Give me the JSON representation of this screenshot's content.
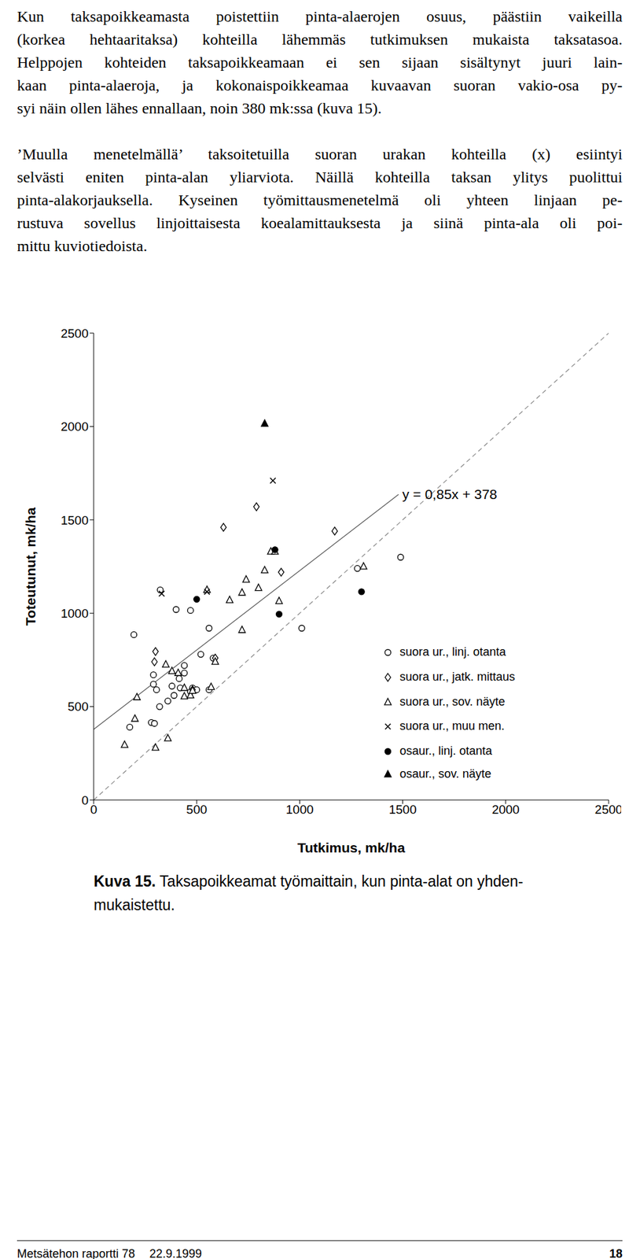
{
  "paragraphs": [
    [
      "Kun taksapoikkeamasta poistettiin pinta-alaerojen osuus, päästiin vaikeilla",
      "(korkea hehtaaritaksa) kohteilla lähemmäs tutkimuksen mukaista taksatasoa.",
      "Helppojen kohteiden taksapoikkeamaan ei sen sijaan sisältynyt juuri lain-",
      "kaan pinta-alaeroja, ja kokonaispoikkeamaa kuvaavan suoran vakio-osa py-",
      "syi näin ollen lähes ennallaan, noin 380 mk:ssa (kuva 15)."
    ],
    [
      "’Muulla menetelmällä’ taksoitetuilla suoran urakan kohteilla (x) esiintyi",
      "selvästi eniten pinta-alan yliarviota. Näillä kohteilla taksan ylitys puolittui",
      "pinta-alakorjauksella. Kyseinen työmittausmenetelmä oli yhteen linjaan pe-",
      "rustuva sovellus linjoittaisesta koealamittauksesta ja siinä pinta-ala oli poi-",
      "mittu kuviotiedoista."
    ]
  ],
  "chart_data": {
    "type": "scatter",
    "x_label": "Tutkimus, mk/ha",
    "y_label": "Toteutunut, mk/ha",
    "xlim": [
      0,
      2500
    ],
    "ylim": [
      0,
      2500
    ],
    "xticks": [
      0,
      500,
      1000,
      1500,
      2000,
      2500
    ],
    "yticks": [
      0,
      500,
      1000,
      1500,
      2000,
      2500
    ],
    "grid": false,
    "legend": "lower right",
    "reference_lines": [
      {
        "x": [
          0,
          2500
        ],
        "y": [
          0,
          2500
        ],
        "line_style": "dashed",
        "color": "#888888"
      },
      {
        "x": [
          0,
          1480
        ],
        "y": [
          378,
          1636
        ],
        "line_style": "solid",
        "color": "#555555",
        "label": "y = 0,85x + 378"
      }
    ],
    "series": [
      {
        "name": "suora ur., linj. otanta",
        "marker": "circle_open",
        "color": "#000000",
        "x": [
          195,
          323,
          400,
          470,
          560,
          1010,
          1280,
          1490,
          175,
          280,
          290,
          290,
          305,
          320,
          360,
          380,
          390,
          415,
          440,
          440,
          470,
          480,
          500,
          520,
          560,
          580,
          295,
          420
        ],
        "y": [
          885,
          1125,
          1020,
          1015,
          920,
          920,
          1240,
          1300,
          390,
          415,
          620,
          670,
          590,
          500,
          530,
          610,
          560,
          650,
          680,
          720,
          580,
          600,
          590,
          780,
          590,
          760,
          410,
          600
        ]
      },
      {
        "name": "suora ur., jatk. mittaus",
        "marker": "diamond_open",
        "color": "#000000",
        "x": [
          300,
          295,
          630,
          790,
          910,
          1170,
          590,
          480
        ],
        "y": [
          795,
          740,
          1460,
          1570,
          1220,
          1440,
          760,
          590
        ]
      },
      {
        "name": "suora ur., sov. näyte",
        "marker": "triangle_open",
        "color": "#000000",
        "x": [
          150,
          200,
          210,
          300,
          360,
          350,
          380,
          410,
          440,
          470,
          440,
          480,
          570,
          590,
          660,
          720,
          720,
          740,
          800,
          830,
          860,
          880,
          900,
          1310,
          550
        ],
        "y": [
          295,
          435,
          550,
          280,
          330,
          725,
          690,
          680,
          600,
          560,
          555,
          585,
          605,
          740,
          1070,
          910,
          1110,
          1180,
          1135,
          1230,
          1330,
          1330,
          1065,
          1250,
          1125
        ]
      },
      {
        "name": "suora ur., muu men.",
        "marker": "x",
        "color": "#000000",
        "x": [
          330,
          550,
          870
        ],
        "y": [
          1105,
          1115,
          1710
        ]
      },
      {
        "name": "osaur., linj. otanta",
        "marker": "circle",
        "color": "#000000",
        "x": [
          500,
          880,
          900,
          1300
        ],
        "y": [
          1075,
          1340,
          995,
          1115
        ]
      },
      {
        "name": "osaur., sov. näyte",
        "marker": "triangle",
        "color": "#000000",
        "x": [
          830
        ],
        "y": [
          2015
        ]
      }
    ]
  },
  "caption": {
    "label": "Kuva 15.",
    "lines": [
      "Taksapoikkeamat työmaittain, kun pinta-alat on yhden-",
      "mukaistettu."
    ]
  },
  "footer": {
    "left": "Metsätehon raportti 78",
    "date": "22.9.1999",
    "page": "18"
  }
}
